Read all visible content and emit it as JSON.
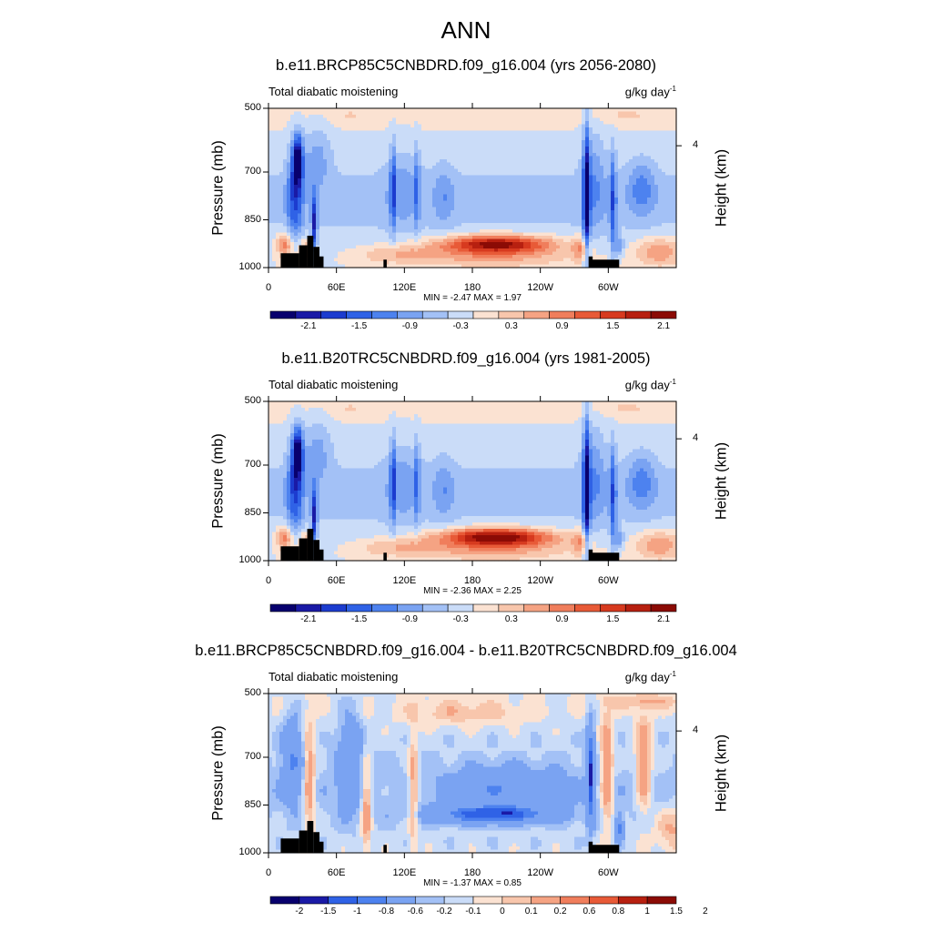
{
  "figure": {
    "main_title": "ANN"
  },
  "chart_data": [
    {
      "type": "heatmap",
      "title": "b.e11.BRCP85C5CNBDRD.f09_g16.004 (yrs 2056-2080)",
      "left_subtitle": "Total diabatic moistening",
      "units_base": "g/kg day",
      "units_exp": "-1",
      "ylabel": "Pressure (mb)",
      "ylabel_right": "Height (km)",
      "y_ticks": [
        "500",
        "700",
        "850",
        "1000"
      ],
      "y_right_ticks": [
        "4"
      ],
      "x_ticks": [
        "0",
        "60E",
        "120E",
        "180",
        "120W",
        "60W"
      ],
      "minmax": "MIN =  -2.47  MAX =   1.97",
      "min": -2.47,
      "max": 1.97,
      "colorbar_labels": [
        "-2.1",
        "-1.5",
        "-0.9",
        "-0.3",
        "0.3",
        "0.9",
        "1.5",
        "2.1"
      ],
      "colorbar_levels": [
        -2.4,
        -2.1,
        -1.8,
        -1.5,
        -1.2,
        -0.9,
        -0.6,
        -0.3,
        0,
        0.3,
        0.6,
        0.9,
        1.2,
        1.5,
        1.8,
        2.1,
        2.4
      ]
    },
    {
      "type": "heatmap",
      "title": "b.e11.B20TRC5CNBDRD.f09_g16.004 (yrs 1981-2005)",
      "left_subtitle": "Total diabatic moistening",
      "units_base": "g/kg day",
      "units_exp": "-1",
      "ylabel": "Pressure (mb)",
      "ylabel_right": "Height (km)",
      "y_ticks": [
        "500",
        "700",
        "850",
        "1000"
      ],
      "y_right_ticks": [
        "4"
      ],
      "x_ticks": [
        "0",
        "60E",
        "120E",
        "180",
        "120W",
        "60W"
      ],
      "minmax": "MIN =  -2.36  MAX =   2.25",
      "min": -2.36,
      "max": 2.25,
      "colorbar_labels": [
        "-2.1",
        "-1.5",
        "-0.9",
        "-0.3",
        "0.3",
        "0.9",
        "1.5",
        "2.1"
      ],
      "colorbar_levels": [
        -2.4,
        -2.1,
        -1.8,
        -1.5,
        -1.2,
        -0.9,
        -0.6,
        -0.3,
        0,
        0.3,
        0.6,
        0.9,
        1.2,
        1.5,
        1.8,
        2.1,
        2.4
      ]
    },
    {
      "type": "heatmap",
      "title": "b.e11.BRCP85C5CNBDRD.f09_g16.004 - b.e11.B20TRC5CNBDRD.f09_g16.004",
      "left_subtitle": "Total diabatic moistening",
      "units_base": "g/kg day",
      "units_exp": "-1",
      "ylabel": "Pressure (mb)",
      "ylabel_right": "Height (km)",
      "y_ticks": [
        "500",
        "700",
        "850",
        "1000"
      ],
      "y_right_ticks": [
        "4"
      ],
      "x_ticks": [
        "0",
        "60E",
        "120E",
        "180",
        "120W",
        "60W"
      ],
      "minmax": "MIN =  -1.37  MAX =   0.85",
      "min": -1.37,
      "max": 0.85,
      "colorbar_labels": [
        "-2",
        "-1.5",
        "-1",
        "-0.8",
        "-0.6",
        "-0.2",
        "-0.1",
        "0",
        "0.1",
        "0.2",
        "0.6",
        "0.8",
        "1",
        "1.5",
        "2"
      ],
      "colorbar_levels": [
        -2,
        -1.5,
        -1,
        -0.8,
        -0.6,
        -0.2,
        -0.1,
        0,
        0.1,
        0.2,
        0.6,
        0.8,
        1,
        1.5,
        2
      ]
    }
  ],
  "colors": {
    "palette": [
      "#08006e",
      "#1a1aa6",
      "#1c3ccf",
      "#2f62e6",
      "#4d82ef",
      "#7aa3f2",
      "#a3c1f6",
      "#cadcf8",
      "#fbe2d2",
      "#f8c6ac",
      "#f5a383",
      "#f07e5c",
      "#e85a37",
      "#d73a1f",
      "#b72010",
      "#8b0b05"
    ],
    "topography": "#000000"
  }
}
